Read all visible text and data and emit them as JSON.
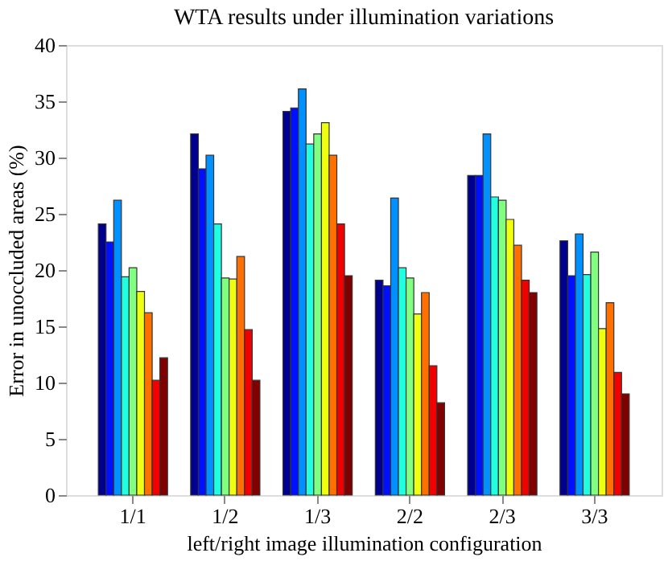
{
  "chart_data": {
    "type": "bar",
    "title": "WTA results under illumination variations",
    "xlabel": "left/right image illumination configuration",
    "ylabel": "Error in unoccluded areas (%)",
    "categories": [
      "1/1",
      "1/2",
      "1/3",
      "2/2",
      "2/3",
      "3/3"
    ],
    "series": [
      {
        "color": "#00008f",
        "values": [
          24.1,
          32.1,
          34.1,
          19.1,
          28.4,
          22.6
        ]
      },
      {
        "color": "#0010ff",
        "values": [
          22.5,
          29.0,
          34.4,
          18.6,
          28.4,
          19.5
        ]
      },
      {
        "color": "#0090ff",
        "values": [
          26.2,
          30.2,
          36.1,
          26.4,
          32.1,
          23.2
        ]
      },
      {
        "color": "#20ffdf",
        "values": [
          19.4,
          24.1,
          31.2,
          20.2,
          26.5,
          19.6
        ]
      },
      {
        "color": "#80ff80",
        "values": [
          20.2,
          19.3,
          32.1,
          19.3,
          26.2,
          21.6
        ]
      },
      {
        "color": "#eeff10",
        "values": [
          18.1,
          19.2,
          33.1,
          16.1,
          24.5,
          14.8
        ]
      },
      {
        "color": "#ff7000",
        "values": [
          16.2,
          21.2,
          30.2,
          18.0,
          22.2,
          17.1
        ]
      },
      {
        "color": "#f00000",
        "values": [
          10.2,
          14.7,
          24.1,
          11.5,
          19.1,
          10.9
        ]
      },
      {
        "color": "#800000",
        "values": [
          12.2,
          10.2,
          19.5,
          8.2,
          18.0,
          9.0
        ]
      }
    ],
    "ylim": [
      0,
      40
    ],
    "yticks": [
      0,
      5,
      10,
      15,
      20,
      25,
      30,
      35,
      40
    ],
    "grid": false,
    "legend": false
  }
}
